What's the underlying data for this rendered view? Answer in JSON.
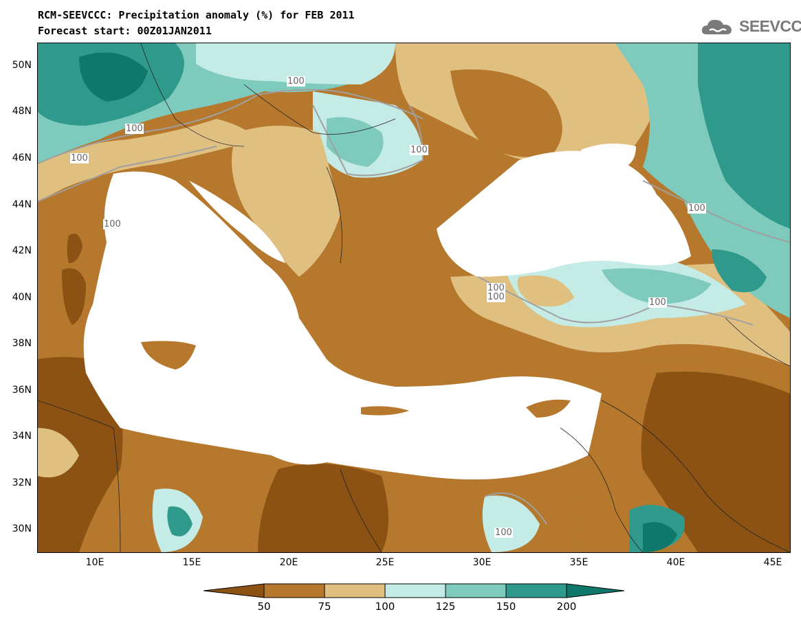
{
  "header": {
    "title_line1": "RCM-SEEVCCC: Precipitation anomaly (%) for FEB 2011",
    "title_line2": "Forecast start: 00Z01JAN2011",
    "logo_text": "SEEVCCC"
  },
  "map": {
    "lat_labels": [
      "50N",
      "48N",
      "46N",
      "44N",
      "42N",
      "40N",
      "38N",
      "36N",
      "34N",
      "32N",
      "30N"
    ],
    "lon_labels": [
      "10E",
      "15E",
      "20E",
      "25E",
      "30E",
      "35E",
      "40E",
      "45E"
    ],
    "contour_labels": [
      "100",
      "100",
      "100",
      "100",
      "100",
      "100",
      "100",
      "100",
      "100",
      "100"
    ]
  },
  "colorbar": {
    "levels": [
      "50",
      "75",
      "100",
      "125",
      "150",
      "200"
    ],
    "colors": [
      "#8b5214",
      "#b5782d",
      "#e0c080",
      "#c4ebe5",
      "#7ecbbd",
      "#2f9a8c",
      "#10786b"
    ]
  },
  "colors": {
    "land_bg": "#b87a30",
    "sea": "#ffffff",
    "contour_line": "#a0a0a0"
  }
}
